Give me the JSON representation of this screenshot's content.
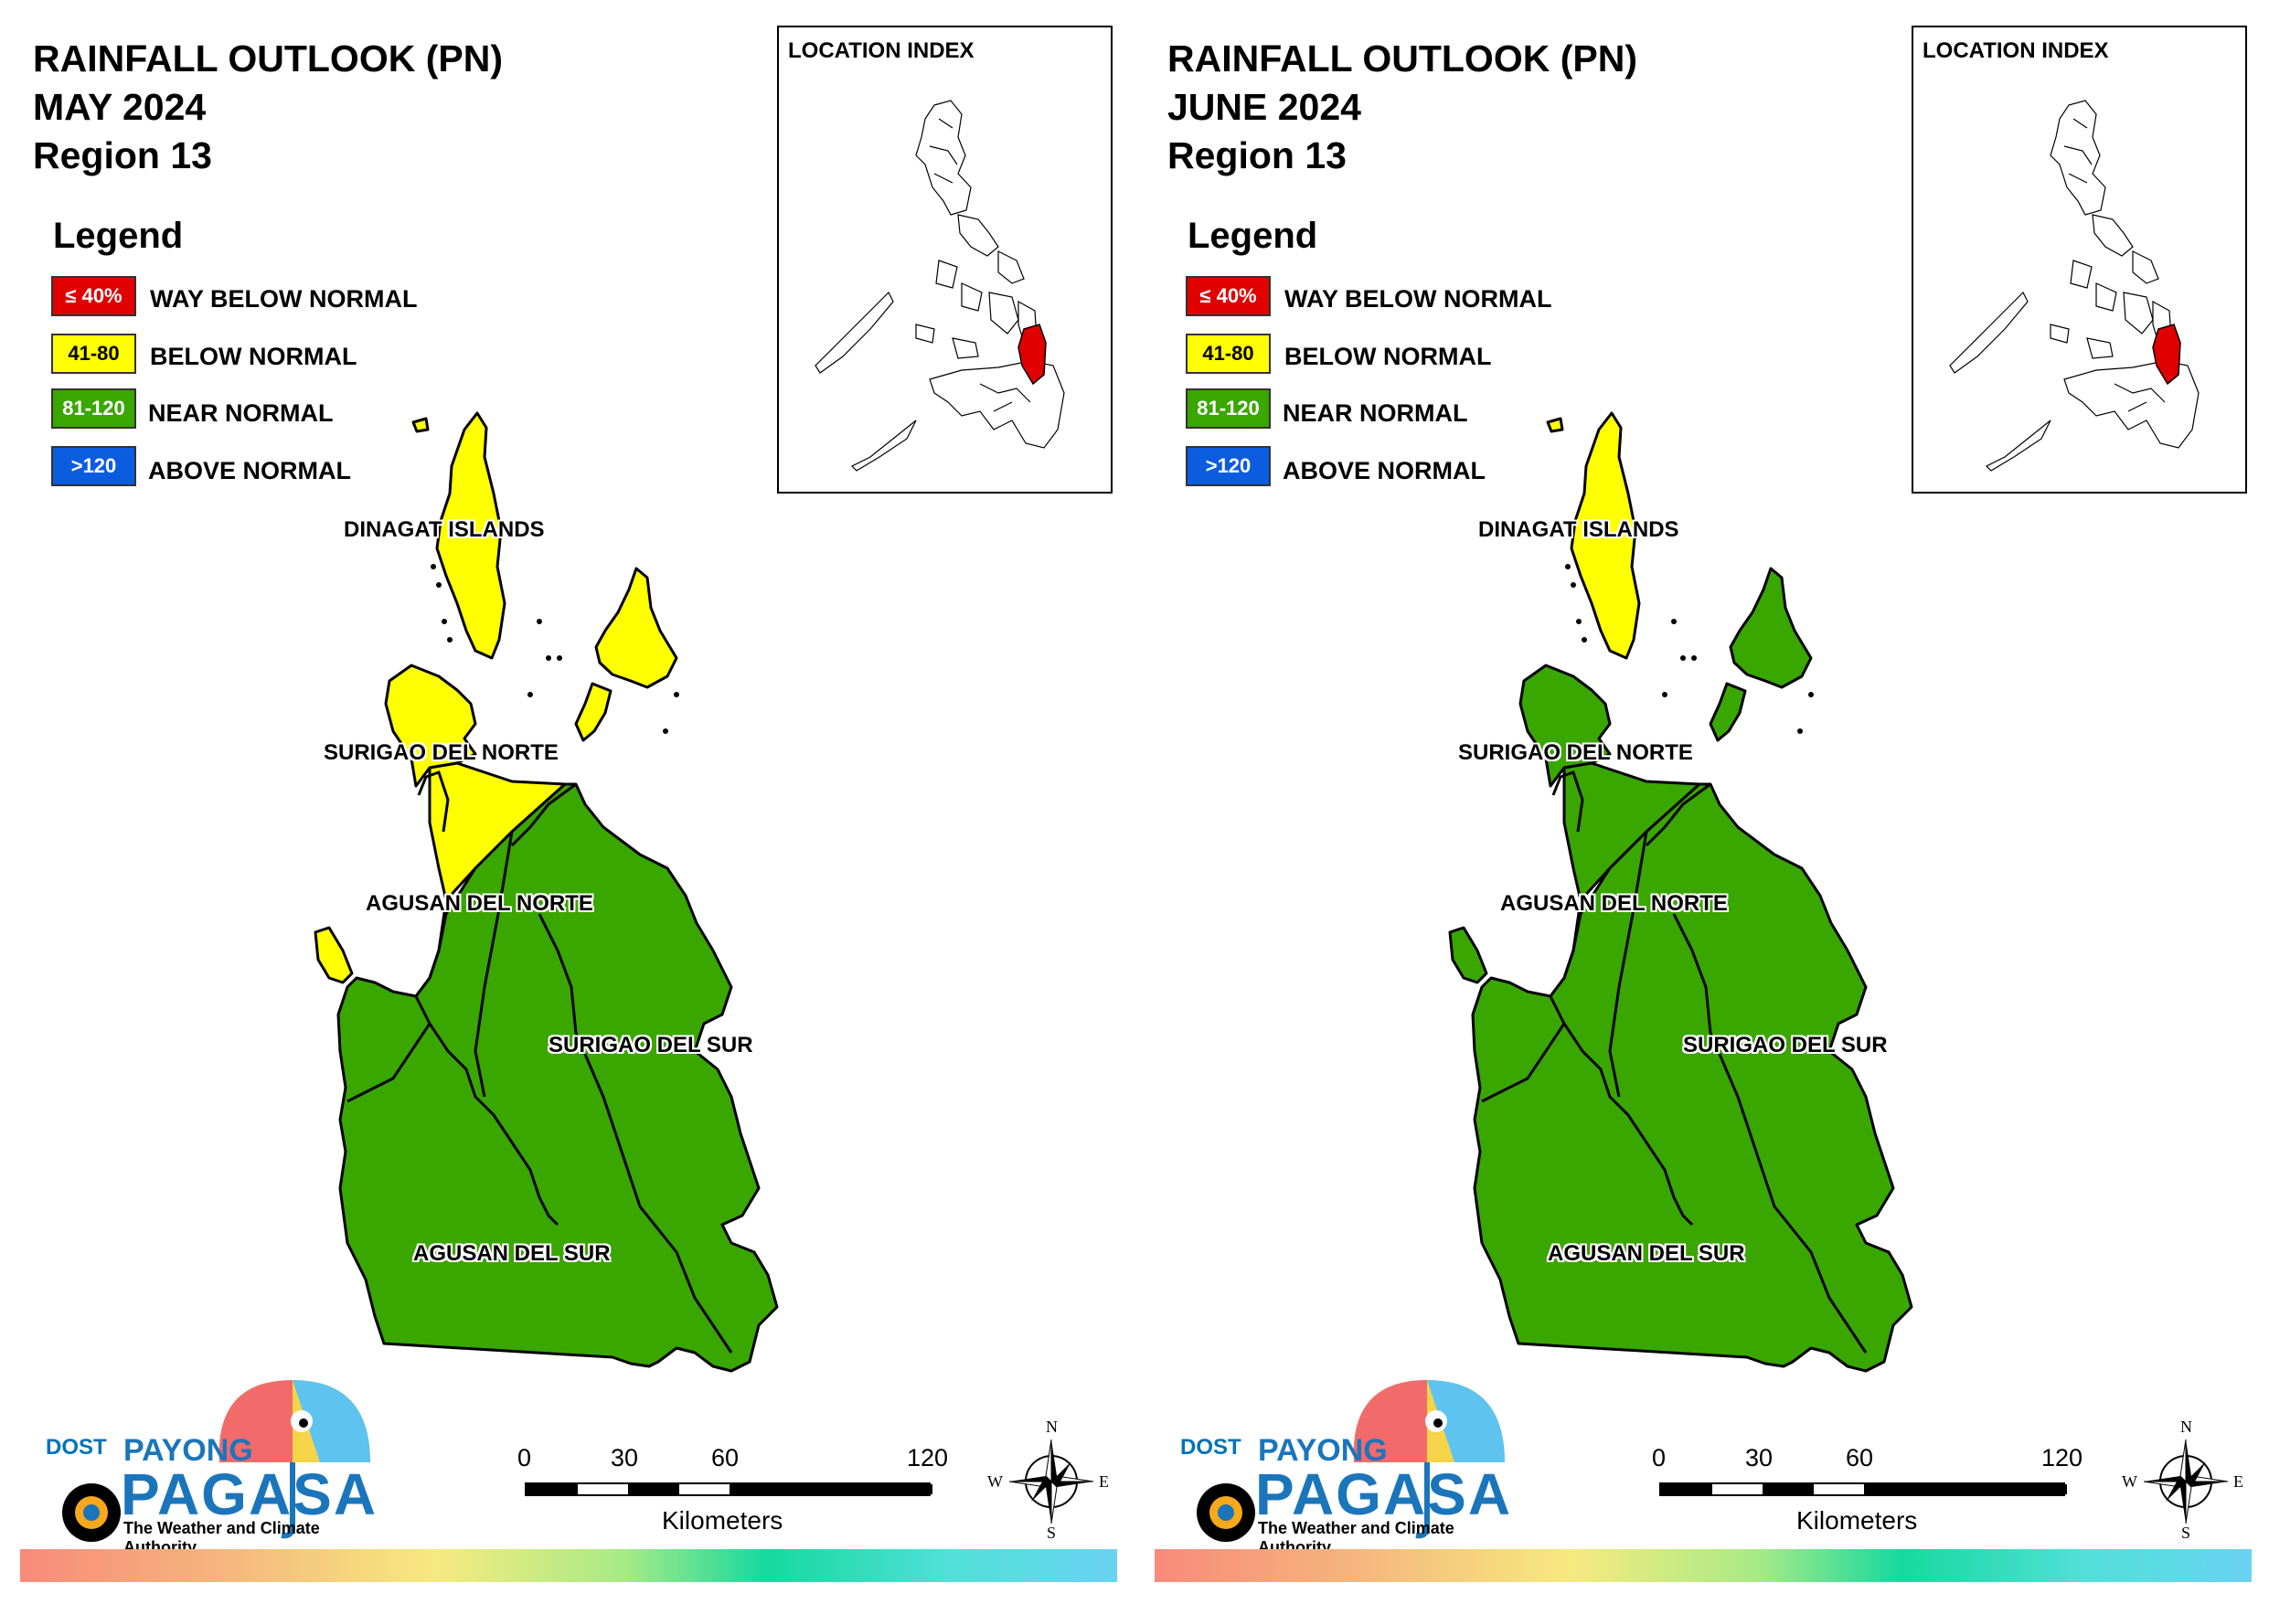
{
  "colors": {
    "way_below": "#e00000",
    "below": "#ffff00",
    "near": "#3aa600",
    "above": "#0c5ce0"
  },
  "panels": [
    {
      "title_line1": "RAINFALL OUTLOOK (PN)",
      "title_line2": "MAY 2024",
      "title_line3": "Region 13",
      "legend": {
        "title": "Legend",
        "items": [
          {
            "swatch": "≤ 40%",
            "label": "WAY BELOW NORMAL",
            "category": "way_below"
          },
          {
            "swatch": "41-80",
            "label": "BELOW NORMAL",
            "category": "below"
          },
          {
            "swatch": "81-120",
            "label": "NEAR NORMAL",
            "category": "near"
          },
          {
            "swatch": ">120",
            "label": "ABOVE NORMAL",
            "category": "above"
          }
        ]
      },
      "inset_title": "LOCATION INDEX",
      "provinces": {
        "dinagat": "DINAGAT ISLANDS",
        "surigao_norte": "SURIGAO DEL NORTE",
        "agusan_norte": "AGUSAN DEL NORTE",
        "surigao_sur": "SURIGAO DEL SUR",
        "agusan_sur": "AGUSAN DEL SUR"
      },
      "province_categories": {
        "dinagat": "below",
        "siargao": "below",
        "surigao_norte": "below",
        "agusan_norte": "mixed: below (north), near (south)",
        "surigao_sur": "near",
        "agusan_sur": "near"
      },
      "scale": {
        "ticks": [
          "0",
          "30",
          "60",
          "120"
        ],
        "unit": "Kilometers"
      },
      "compass": {
        "n": "N",
        "s": "S",
        "e": "E",
        "w": "W"
      },
      "logo": {
        "dost": "DOST",
        "payong": "PAYONG",
        "pagasa": "PAGASA",
        "tagline": "The Weather and Climate Authority"
      }
    },
    {
      "title_line1": "RAINFALL OUTLOOK (PN)",
      "title_line2": "JUNE 2024",
      "title_line3": "Region 13",
      "legend": {
        "title": "Legend",
        "items": [
          {
            "swatch": "≤ 40%",
            "label": "WAY BELOW NORMAL",
            "category": "way_below"
          },
          {
            "swatch": "41-80",
            "label": "BELOW NORMAL",
            "category": "below"
          },
          {
            "swatch": "81-120",
            "label": "NEAR NORMAL",
            "category": "near"
          },
          {
            "swatch": ">120",
            "label": "ABOVE NORMAL",
            "category": "above"
          }
        ]
      },
      "inset_title": "LOCATION INDEX",
      "provinces": {
        "dinagat": "DINAGAT ISLANDS",
        "surigao_norte": "SURIGAO DEL NORTE",
        "agusan_norte": "AGUSAN DEL NORTE",
        "surigao_sur": "SURIGAO DEL SUR",
        "agusan_sur": "AGUSAN DEL SUR"
      },
      "province_categories": {
        "dinagat": "below",
        "siargao": "near",
        "surigao_norte": "near",
        "agusan_norte": "near",
        "surigao_sur": "near",
        "agusan_sur": "near"
      },
      "scale": {
        "ticks": [
          "0",
          "30",
          "60",
          "120"
        ],
        "unit": "Kilometers"
      },
      "compass": {
        "n": "N",
        "s": "S",
        "e": "E",
        "w": "W"
      },
      "logo": {
        "dost": "DOST",
        "payong": "PAYONG",
        "pagasa": "PAGASA",
        "tagline": "The Weather and Climate Authority"
      }
    }
  ]
}
